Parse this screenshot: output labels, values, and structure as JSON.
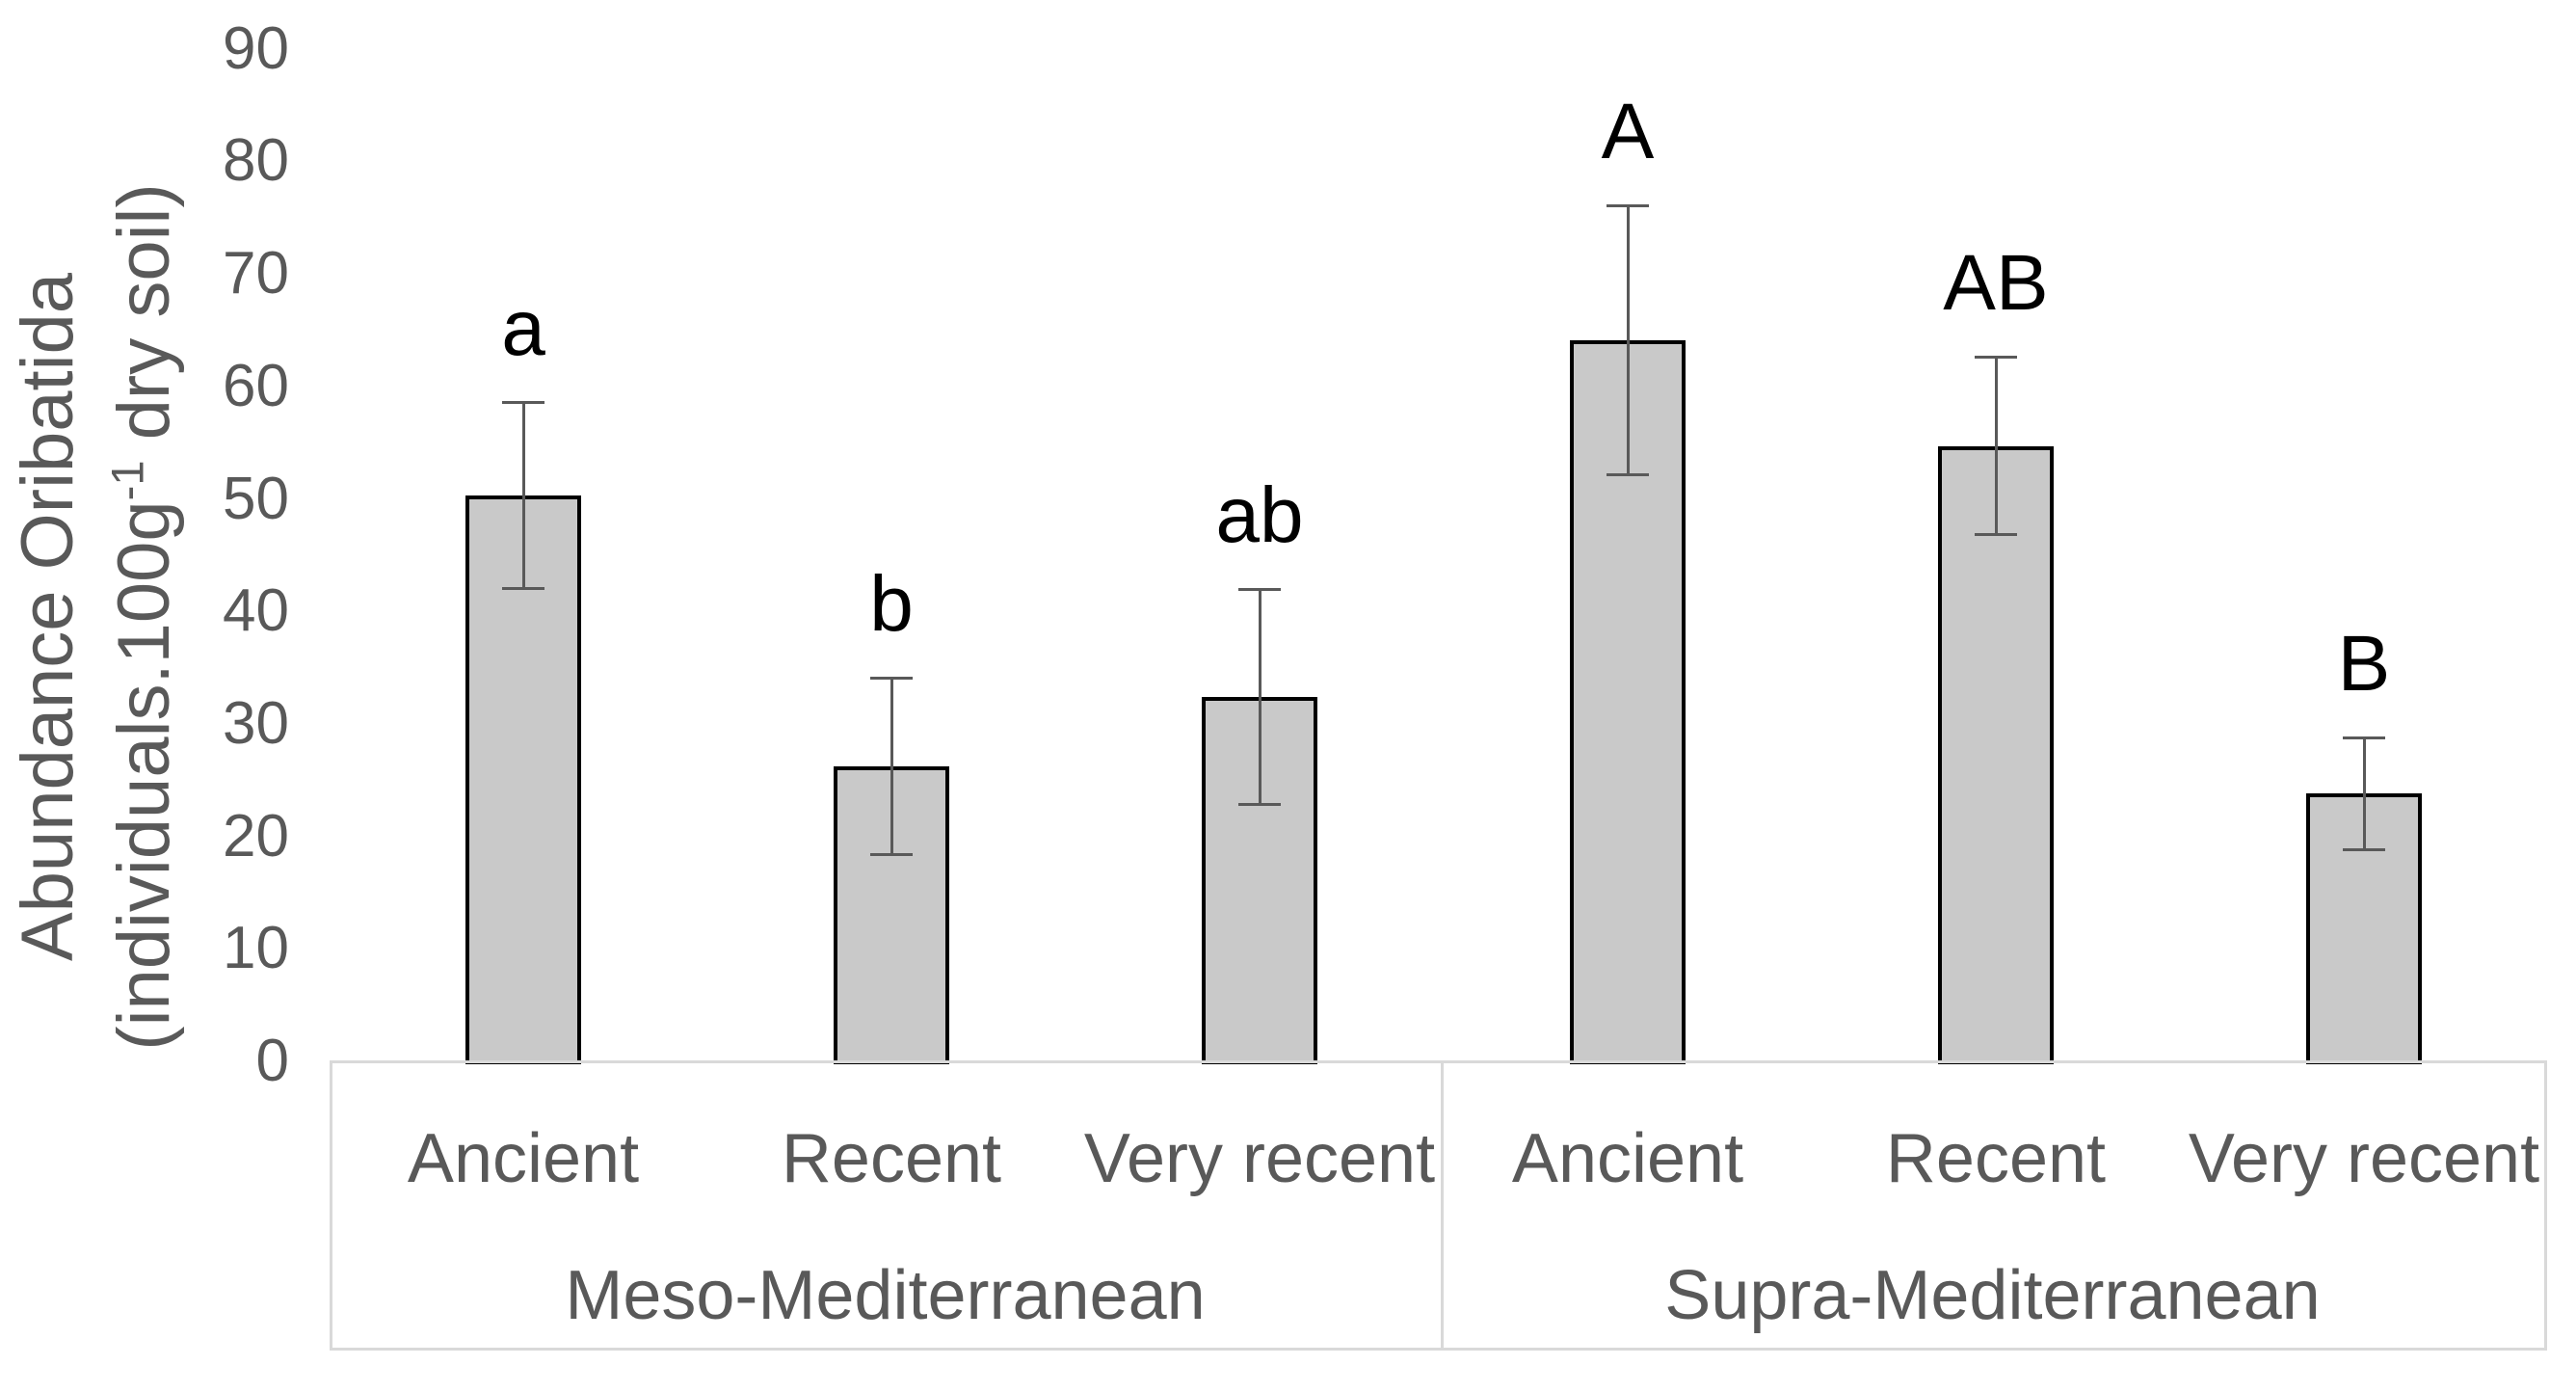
{
  "chart_data": {
    "type": "bar",
    "title": "",
    "ylabel": "Abundance Oribatida (individuals.100g⁻¹ dry soil)",
    "ylabel_line1": "Abundance Oribatida",
    "ylabel_line2_pre": "(individuals.100g",
    "ylabel_line2_sup": "-1",
    "ylabel_line2_post": " dry soil)",
    "ylim": [
      0,
      90
    ],
    "y_ticks": [
      0,
      10,
      20,
      30,
      40,
      50,
      60,
      70,
      80,
      90
    ],
    "grid": false,
    "legend": false,
    "categories": [
      "Ancient",
      "Recent",
      "Very recent"
    ],
    "groups": [
      {
        "label": "Meso-Mediterranean"
      },
      {
        "label": "Supra-Mediterranean"
      }
    ],
    "series": [
      {
        "group": "Meso-Mediterranean",
        "category": "Ancient",
        "value": 50.3,
        "error": 8.3,
        "sig_letter": "a"
      },
      {
        "group": "Meso-Mediterranean",
        "category": "Recent",
        "value": 26.2,
        "error": 7.9,
        "sig_letter": "b"
      },
      {
        "group": "Meso-Mediterranean",
        "category": "Very recent",
        "value": 32.4,
        "error": 9.6,
        "sig_letter": "ab"
      },
      {
        "group": "Supra-Mediterranean",
        "category": "Ancient",
        "value": 64.1,
        "error": 12.0,
        "sig_letter": "A"
      },
      {
        "group": "Supra-Mediterranean",
        "category": "Recent",
        "value": 54.7,
        "error": 7.9,
        "sig_letter": "AB"
      },
      {
        "group": "Supra-Mediterranean",
        "category": "Very recent",
        "value": 23.8,
        "error": 5.0,
        "sig_letter": "B"
      }
    ],
    "colors": {
      "bar_fill": "#c9c9c9",
      "bar_border": "#000000",
      "error_bar": "#595959",
      "axis_text": "#595959",
      "sig_letter": "#000000",
      "frame_line": "#d9d9d9",
      "background": "#ffffff"
    }
  }
}
